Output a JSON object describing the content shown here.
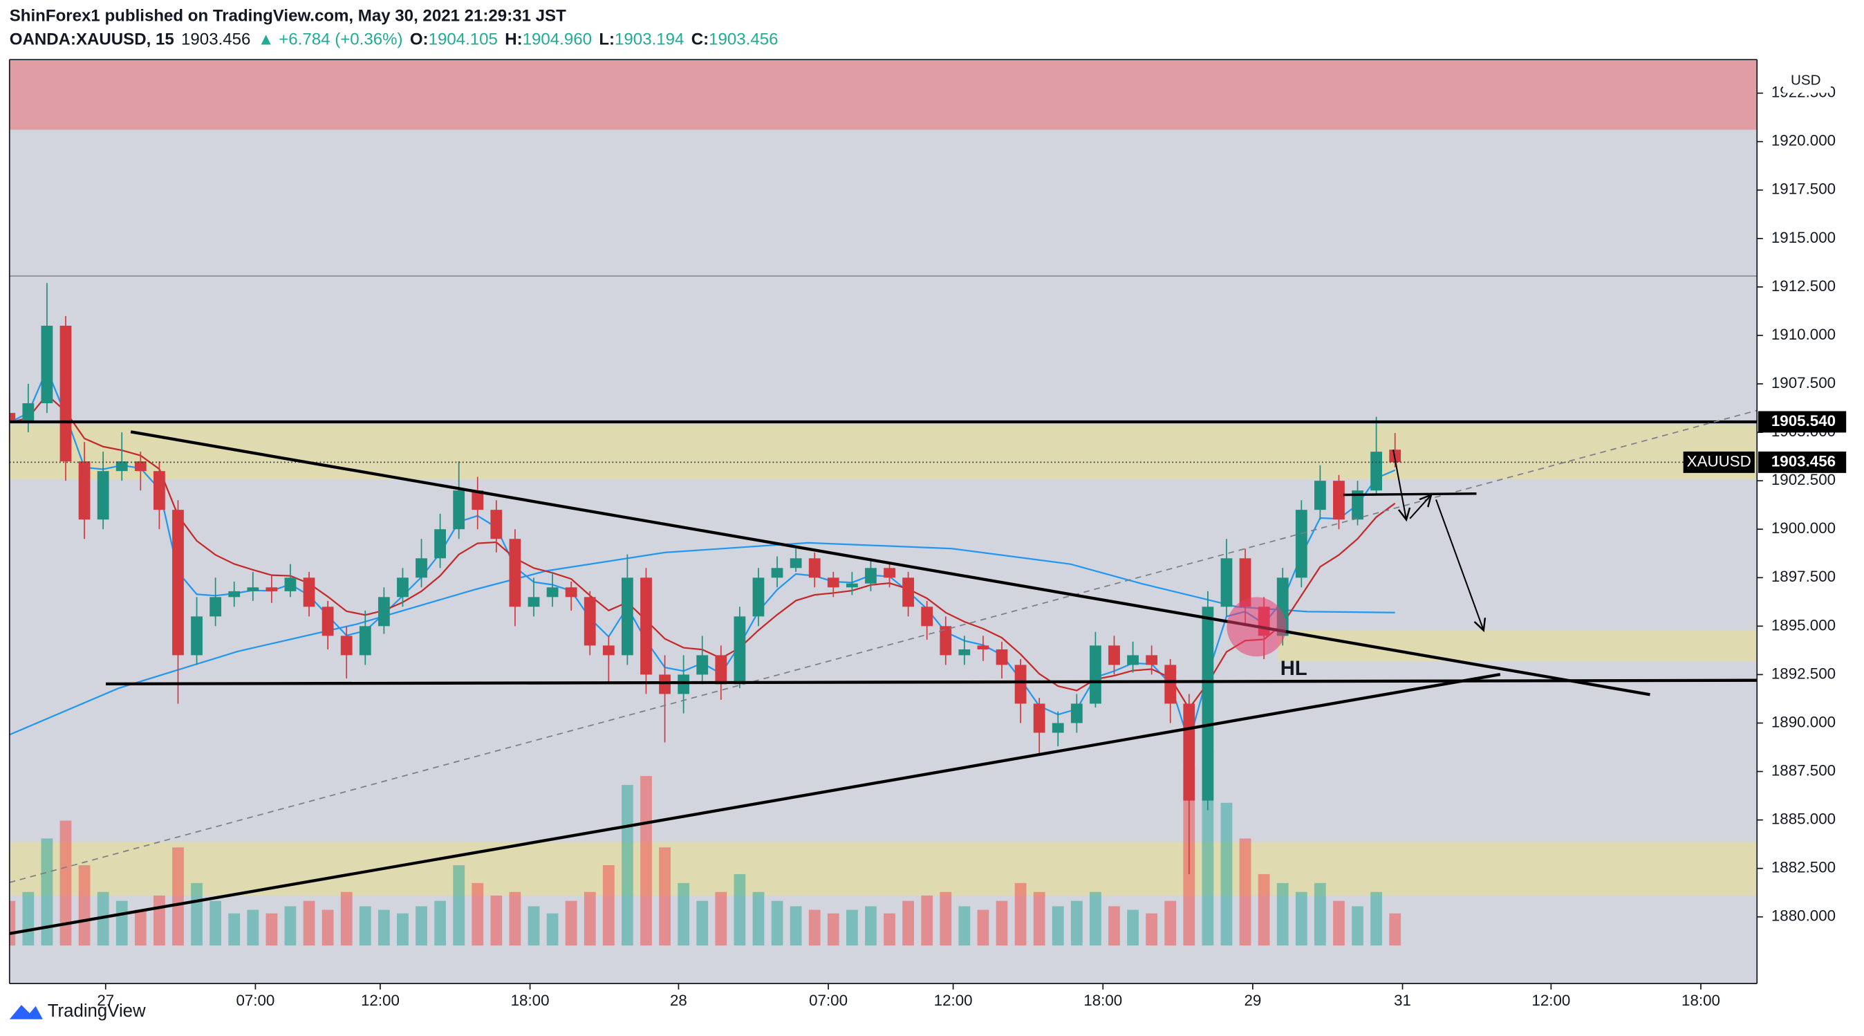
{
  "header": {
    "publisher_line": "ShinForex1 published on TradingView.com, May 30, 2021 21:29:31 JST",
    "symbol": "OANDA:XAUUSD, 15",
    "last": "1903.456",
    "change": "▲ +6.784 (+0.36%)",
    "ohlc": [
      {
        "label": "O:",
        "value": "1904.105"
      },
      {
        "label": "H:",
        "value": "1904.960"
      },
      {
        "label": "L:",
        "value": "1903.194"
      },
      {
        "label": "C:",
        "value": "1903.456"
      }
    ]
  },
  "chart_data": {
    "type": "candlestick",
    "currency": "USD",
    "up_color": "#1f8f80",
    "down_color": "#d23a40",
    "x": [
      0,
      3,
      6,
      9,
      12,
      15,
      18,
      21,
      24,
      27,
      30,
      33,
      36,
      39,
      42,
      45,
      48,
      51,
      54,
      57,
      60,
      63,
      66,
      69,
      72,
      75,
      78,
      81,
      84,
      87,
      90,
      93,
      96,
      99,
      102,
      105,
      108,
      111,
      114,
      117,
      120,
      123,
      126,
      129,
      132,
      135,
      138,
      141,
      144,
      147,
      150,
      153,
      156,
      159,
      162,
      165,
      168,
      171,
      174,
      177,
      180,
      183,
      186,
      189,
      192,
      195,
      198,
      201,
      204,
      207,
      210,
      213,
      216,
      219,
      222
    ],
    "open": [
      1906,
      1905.5,
      1906.5,
      1910.5,
      1903.5,
      1900.5,
      1903,
      1903.5,
      1903,
      1901,
      1893.5,
      1895.5,
      1896.5,
      1896.8,
      1897,
      1896.8,
      1897.5,
      1896,
      1894.5,
      1893.5,
      1895,
      1896.5,
      1897.5,
      1898.5,
      1900,
      1902,
      1901,
      1899.5,
      1896,
      1896.5,
      1897,
      1896.5,
      1894,
      1893.5,
      1897.5,
      1892.5,
      1891.5,
      1892.5,
      1893.5,
      1892,
      1895.5,
      1897.5,
      1898,
      1898.5,
      1897.5,
      1897,
      1897.2,
      1898,
      1897.5,
      1896,
      1895,
      1893.5,
      1894,
      1893.8,
      1893,
      1891,
      1889.5,
      1890,
      1891,
      1894,
      1893,
      1893.5,
      1893,
      1891,
      1886,
      1896,
      1898.5,
      1896,
      1894.5,
      1897.5,
      1901,
      1902.5,
      1900.5,
      1902,
      1904.105
    ],
    "high": [
      1907,
      1907.5,
      1912.7,
      1911,
      1904.5,
      1904,
      1905,
      1904,
      1903.5,
      1901.5,
      1896.5,
      1897.5,
      1897.3,
      1897.8,
      1897.6,
      1898.2,
      1897.8,
      1896.3,
      1895,
      1895.8,
      1897,
      1898,
      1899.5,
      1900.8,
      1903.5,
      1902.7,
      1901.5,
      1900,
      1897.5,
      1897.8,
      1897.3,
      1896.8,
      1894.5,
      1898.7,
      1898,
      1893.5,
      1893.5,
      1894.5,
      1894,
      1896,
      1898,
      1898.6,
      1899,
      1898.8,
      1897.8,
      1897.8,
      1898.5,
      1898.3,
      1897.8,
      1896.3,
      1895.5,
      1894.5,
      1894.5,
      1894.2,
      1893.3,
      1891.3,
      1890.6,
      1891.5,
      1894.7,
      1894.5,
      1894.2,
      1894,
      1893.3,
      1891.5,
      1896.8,
      1899.5,
      1899,
      1896.5,
      1898,
      1901.5,
      1903.3,
      1902.8,
      1902.5,
      1905.8,
      1904.96
    ],
    "low": [
      1904.5,
      1905,
      1906,
      1902.5,
      1899.5,
      1900,
      1902.5,
      1902,
      1900,
      1891,
      1893,
      1895,
      1896,
      1896.3,
      1896.2,
      1896.5,
      1895.5,
      1893.8,
      1892.3,
      1893,
      1894.6,
      1896,
      1897,
      1898,
      1899.5,
      1900,
      1898.8,
      1895,
      1895.5,
      1896,
      1895.8,
      1893.5,
      1892,
      1893,
      1891.5,
      1889,
      1890.5,
      1892,
      1891.2,
      1891.8,
      1895,
      1897,
      1897.8,
      1897,
      1896.5,
      1896.6,
      1896.8,
      1897,
      1895.5,
      1894.3,
      1893,
      1893,
      1893.2,
      1892.3,
      1890,
      1888.4,
      1888.8,
      1889.5,
      1890.8,
      1892.5,
      1892.6,
      1892.5,
      1890,
      1882.2,
      1885.5,
      1895.5,
      1895,
      1893.3,
      1894,
      1897,
      1900.5,
      1900,
      1900.2,
      1901.8,
      1903.194
    ],
    "close": [
      1905.5,
      1906.5,
      1910.5,
      1903.5,
      1900.5,
      1903,
      1903.5,
      1903,
      1901,
      1893.5,
      1895.5,
      1896.5,
      1896.8,
      1897,
      1896.8,
      1897.5,
      1896,
      1894.5,
      1893.5,
      1895,
      1896.5,
      1897.5,
      1898.5,
      1900,
      1902,
      1901,
      1899.5,
      1896,
      1896.5,
      1897,
      1896.5,
      1894,
      1893.5,
      1897.5,
      1892.5,
      1891.5,
      1892.5,
      1893.5,
      1892,
      1895.5,
      1897.5,
      1898,
      1898.5,
      1897.5,
      1897,
      1897.2,
      1898,
      1897.5,
      1896,
      1895,
      1893.5,
      1893.8,
      1893.8,
      1893,
      1891,
      1889.5,
      1890,
      1891,
      1894,
      1893,
      1893.5,
      1893,
      1891,
      1886,
      1896,
      1898.5,
      1896,
      1894.5,
      1897.5,
      1901,
      1902.5,
      1900.5,
      1902,
      1904,
      1903.456
    ],
    "volume": [
      25,
      30,
      60,
      70,
      45,
      30,
      25,
      20,
      28,
      55,
      35,
      25,
      18,
      20,
      18,
      22,
      25,
      20,
      30,
      22,
      20,
      18,
      22,
      25,
      45,
      35,
      28,
      30,
      22,
      18,
      25,
      30,
      45,
      90,
      95,
      55,
      35,
      25,
      30,
      40,
      30,
      25,
      22,
      20,
      18,
      20,
      22,
      18,
      25,
      28,
      30,
      22,
      20,
      25,
      35,
      30,
      22,
      25,
      30,
      22,
      20,
      18,
      25,
      100,
      110,
      80,
      60,
      40,
      35,
      30,
      35,
      25,
      22,
      30,
      18
    ],
    "xlim": [
      0,
      280
    ],
    "xticks": [
      {
        "value": 15.4,
        "label": "27"
      },
      {
        "value": 39.4,
        "label": "07:00"
      },
      {
        "value": 59.4,
        "label": "12:00"
      },
      {
        "value": 83.4,
        "label": "18:00"
      },
      {
        "value": 107.2,
        "label": "28"
      },
      {
        "value": 131.2,
        "label": "07:00"
      },
      {
        "value": 151.2,
        "label": "12:00"
      },
      {
        "value": 175.2,
        "label": "18:00"
      },
      {
        "value": 199.2,
        "label": "29"
      },
      {
        "value": 223.2,
        "label": "31"
      },
      {
        "value": 247,
        "label": "12:00"
      },
      {
        "value": 271,
        "label": "18:00"
      }
    ],
    "ylim": [
      1876.56,
      1924.23
    ],
    "yticks": [
      {
        "value": 1880,
        "label": "1880.000"
      },
      {
        "value": 1882.5,
        "label": "1882.500"
      },
      {
        "value": 1885,
        "label": "1885.000"
      },
      {
        "value": 1887.5,
        "label": "1887.500"
      },
      {
        "value": 1890,
        "label": "1890.000"
      },
      {
        "value": 1892.5,
        "label": "1892.500"
      },
      {
        "value": 1895,
        "label": "1895.000"
      },
      {
        "value": 1897.5,
        "label": "1897.500"
      },
      {
        "value": 1900,
        "label": "1900.000"
      },
      {
        "value": 1902.5,
        "label": "1902.500"
      },
      {
        "value": 1905,
        "label": "1905.000"
      },
      {
        "value": 1907.5,
        "label": "1907.500"
      },
      {
        "value": 1910,
        "label": "1910.000"
      },
      {
        "value": 1912.5,
        "label": "1912.500"
      },
      {
        "value": 1915,
        "label": "1915.000"
      },
      {
        "value": 1917.5,
        "label": "1917.500"
      },
      {
        "value": 1920,
        "label": "1920.000"
      },
      {
        "value": 1922.5,
        "label": "1922.500"
      }
    ],
    "price_line": {
      "value": 1905.54,
      "label": "1905.540"
    },
    "last_price": {
      "symbol": "XAUUSD",
      "value": 1903.456,
      "label": "1903.456"
    },
    "ma_long": {
      "color": "#2196f3",
      "x": [
        0,
        17.5,
        36.6,
        55.6,
        74.7,
        86,
        105,
        128,
        151,
        170,
        181.3,
        196.6,
        208,
        222
      ],
      "values": [
        1889.4,
        1891.8,
        1893.7,
        1895.1,
        1896.9,
        1897.85,
        1898.8,
        1899.3,
        1899,
        1898.2,
        1897.2,
        1896,
        1895.75,
        1895.7
      ]
    },
    "annotation": "HL"
  },
  "footer": {
    "brand": "TradingView"
  }
}
